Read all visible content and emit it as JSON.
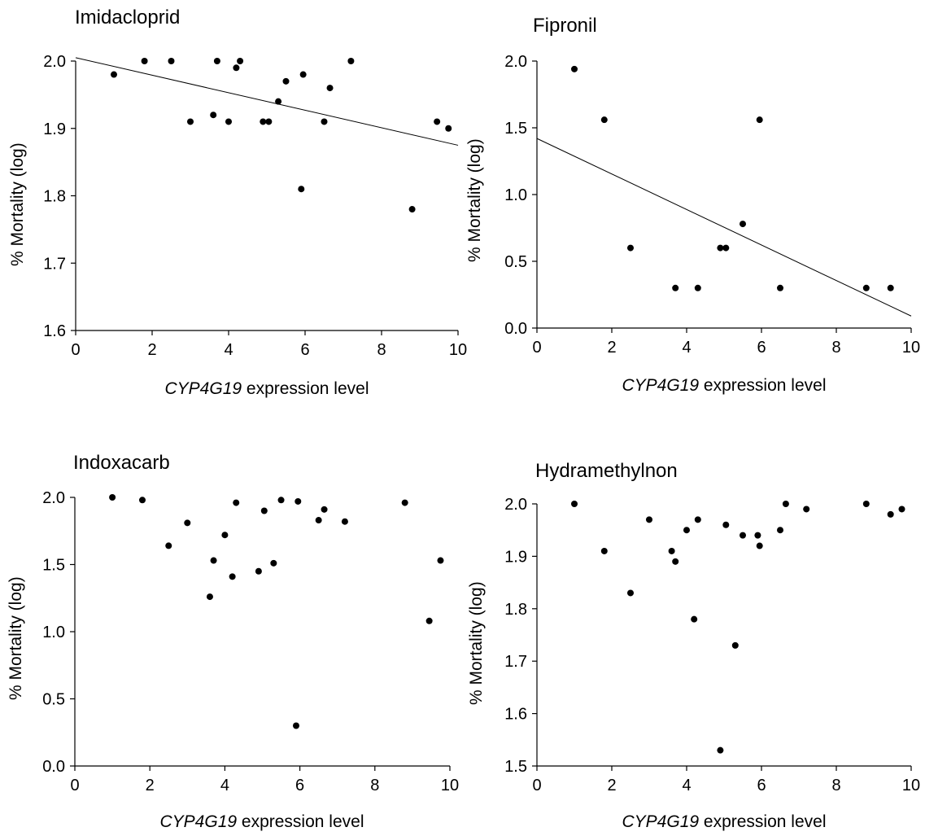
{
  "chart_data": [
    {
      "type": "scatter",
      "title": "Imidacloprid",
      "xlabel_italic": "CYP4G19",
      "xlabel_rest": " expression level",
      "ylabel": "% Mortality (log)",
      "xlim": [
        0,
        10
      ],
      "ylim": [
        1.6,
        2.0
      ],
      "xticks": [
        "0",
        "2",
        "4",
        "6",
        "8",
        "10"
      ],
      "yticks": [
        "1.6",
        "1.7",
        "1.8",
        "1.9",
        "2.0"
      ],
      "x": [
        1.0,
        1.8,
        2.5,
        3.0,
        3.6,
        3.7,
        4.0,
        4.2,
        4.3,
        4.9,
        5.05,
        5.3,
        5.5,
        5.9,
        5.95,
        6.5,
        6.65,
        7.2,
        8.8,
        9.45,
        9.75
      ],
      "y": [
        1.98,
        2.0,
        2.0,
        1.91,
        1.92,
        2.0,
        1.91,
        1.99,
        2.0,
        1.91,
        1.91,
        1.94,
        1.97,
        1.81,
        1.98,
        1.91,
        1.96,
        2.0,
        1.78,
        1.91,
        1.9
      ],
      "trendline": {
        "x": [
          0,
          10
        ],
        "y": [
          2.005,
          1.875
        ]
      }
    },
    {
      "type": "scatter",
      "title": "Fipronil",
      "xlabel_italic": "CYP4G19",
      "xlabel_rest": " expression level",
      "ylabel": "% Mortality (log)",
      "xlim": [
        0,
        10
      ],
      "ylim": [
        0.0,
        2.0
      ],
      "xticks": [
        "0",
        "2",
        "4",
        "6",
        "8",
        "10"
      ],
      "yticks": [
        "0.0",
        "0.5",
        "1.0",
        "1.5",
        "2.0"
      ],
      "x": [
        1.0,
        1.8,
        2.5,
        3.7,
        4.3,
        4.9,
        5.05,
        5.5,
        5.95,
        6.5,
        8.8,
        9.45
      ],
      "y": [
        1.94,
        1.56,
        0.6,
        0.3,
        0.3,
        0.6,
        0.6,
        0.78,
        1.56,
        0.3,
        0.3,
        0.3
      ],
      "trendline": {
        "x": [
          0,
          10
        ],
        "y": [
          1.42,
          0.09
        ]
      }
    },
    {
      "type": "scatter",
      "title": "Indoxacarb",
      "xlabel_italic": "CYP4G19",
      "xlabel_rest": " expression level",
      "ylabel": "% Mortality (log)",
      "xlim": [
        0,
        10
      ],
      "ylim": [
        0.0,
        2.0
      ],
      "xticks": [
        "0",
        "2",
        "4",
        "6",
        "8",
        "10"
      ],
      "yticks": [
        "0.0",
        "0.5",
        "1.0",
        "1.5",
        "2.0"
      ],
      "x": [
        1.0,
        1.8,
        2.5,
        3.0,
        3.6,
        3.7,
        4.0,
        4.2,
        4.3,
        4.9,
        5.05,
        5.3,
        5.5,
        5.9,
        5.95,
        6.5,
        6.65,
        7.2,
        8.8,
        9.45,
        9.75
      ],
      "y": [
        2.0,
        1.98,
        1.64,
        1.81,
        1.26,
        1.53,
        1.72,
        1.41,
        1.96,
        1.45,
        1.9,
        1.51,
        1.98,
        0.3,
        1.97,
        1.83,
        1.91,
        1.82,
        1.96,
        1.08,
        1.53
      ],
      "trendline": null
    },
    {
      "type": "scatter",
      "title": "Hydramethylnon",
      "xlabel_italic": "CYP4G19",
      "xlabel_rest": " expression level",
      "ylabel": "% Mortality (log)",
      "xlim": [
        0,
        10
      ],
      "ylim": [
        1.5,
        2.0
      ],
      "xticks": [
        "0",
        "2",
        "4",
        "6",
        "8",
        "10"
      ],
      "yticks": [
        "1.5",
        "1.6",
        "1.7",
        "1.8",
        "1.9",
        "2.0"
      ],
      "x": [
        1.0,
        1.8,
        2.5,
        3.0,
        3.6,
        3.7,
        4.0,
        4.2,
        4.3,
        4.9,
        5.05,
        5.3,
        5.5,
        5.9,
        5.95,
        6.5,
        6.65,
        7.2,
        8.8,
        9.45,
        9.75
      ],
      "y": [
        2.0,
        1.91,
        1.83,
        1.97,
        1.91,
        1.89,
        1.95,
        1.78,
        1.97,
        1.53,
        1.96,
        1.73,
        1.94,
        1.94,
        1.92,
        1.95,
        2.0,
        1.99,
        2.0,
        1.98,
        1.99
      ],
      "trendline": null
    }
  ]
}
